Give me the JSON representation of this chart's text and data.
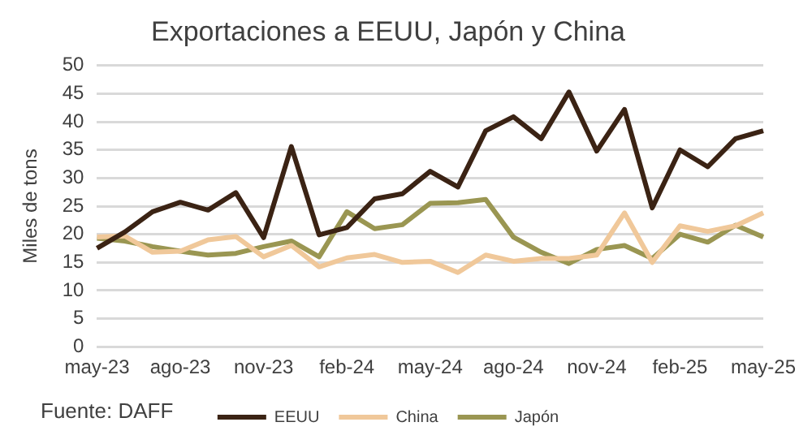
{
  "chart_data": {
    "type": "line",
    "title": "Exportaciones a EEUU, Japón y China",
    "ylabel": "Miles de tons",
    "categories": [
      "may-23",
      null,
      null,
      "ago-23",
      null,
      null,
      "nov-23",
      null,
      null,
      "feb-24",
      null,
      null,
      "may-24",
      null,
      null,
      "ago-24",
      null,
      null,
      "nov-24",
      null,
      null,
      "feb-25",
      null,
      null,
      "may-25"
    ],
    "series": [
      {
        "name": "EEUU",
        "color": "#3b2314",
        "values": [
          17.5,
          20.4,
          24,
          25.7,
          24.3,
          27.4,
          19.4,
          35.6,
          19.9,
          21.2,
          26.3,
          27.2,
          31.2,
          28.4,
          38.4,
          40.9,
          37,
          45.3,
          34.8,
          42.2,
          24.7,
          35,
          32,
          37,
          38.4
        ]
      },
      {
        "name": "China",
        "color": "#f0c89a",
        "values": [
          19.5,
          19.7,
          16.8,
          17,
          19,
          19.6,
          16,
          18,
          14.2,
          15.8,
          16.4,
          15,
          15.2,
          13.2,
          16.3,
          15.2,
          15.7,
          15.7,
          16.3,
          23.8,
          15,
          21.5,
          20.5,
          21.5,
          23.8
        ]
      },
      {
        "name": "Japón",
        "color": "#9a9652",
        "values": [
          19.3,
          18.8,
          17.8,
          17,
          16.3,
          16.6,
          17.8,
          18.8,
          16,
          24,
          21,
          21.7,
          25.5,
          25.6,
          26.2,
          19.5,
          16.8,
          14.8,
          17.3,
          18,
          15.7,
          20,
          18.6,
          21.6,
          19.5
        ]
      }
    ],
    "ylim": [
      0,
      50
    ],
    "yticks": [
      0,
      5,
      10,
      15,
      20,
      25,
      30,
      35,
      40,
      45,
      50
    ],
    "grid": "y",
    "legend": "bottom",
    "marker": "none",
    "line_style": "solid",
    "annotations": [
      "Fuente: DAFF"
    ]
  }
}
